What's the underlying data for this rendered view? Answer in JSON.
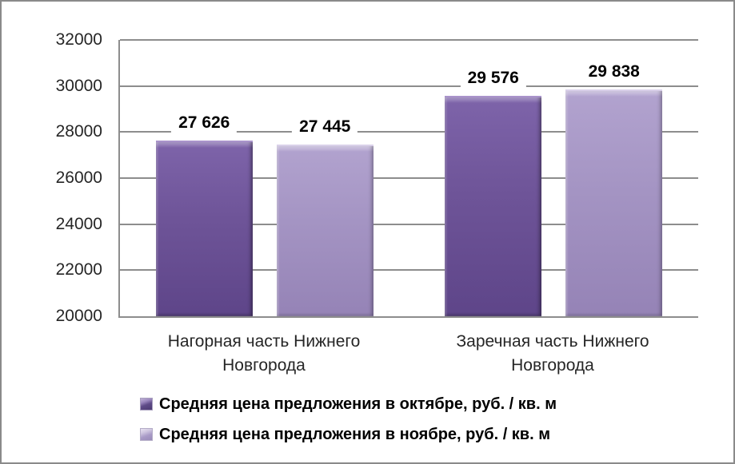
{
  "chart_data": {
    "type": "bar",
    "title": "",
    "categories": [
      "Нагорная часть Нижнего Новгорода",
      "Заречная часть Нижнего Новгорода"
    ],
    "series": [
      {
        "name": "Средняя цена предложения в октябре, руб. / кв. м",
        "values": [
          27626,
          29576
        ],
        "labels": [
          "27 626",
          "29 576"
        ],
        "color": "#6c5196"
      },
      {
        "name": "Средняя цена предложения в ноябре, руб. / кв. м",
        "values": [
          27445,
          29838
        ],
        "labels": [
          "27 445",
          "29 838"
        ],
        "color": "#a594c4"
      }
    ],
    "ylim": [
      20000,
      32000
    ],
    "y_ticks": [
      "32000",
      "30000",
      "28000",
      "26000",
      "24000",
      "22000",
      "20000"
    ],
    "grid": true,
    "legend_position": "bottom-left"
  },
  "style": {
    "gridline_color": "#8d8d8d",
    "border_color": "#8a8a8a",
    "text_color": "#262626",
    "background": "#ffffff"
  }
}
